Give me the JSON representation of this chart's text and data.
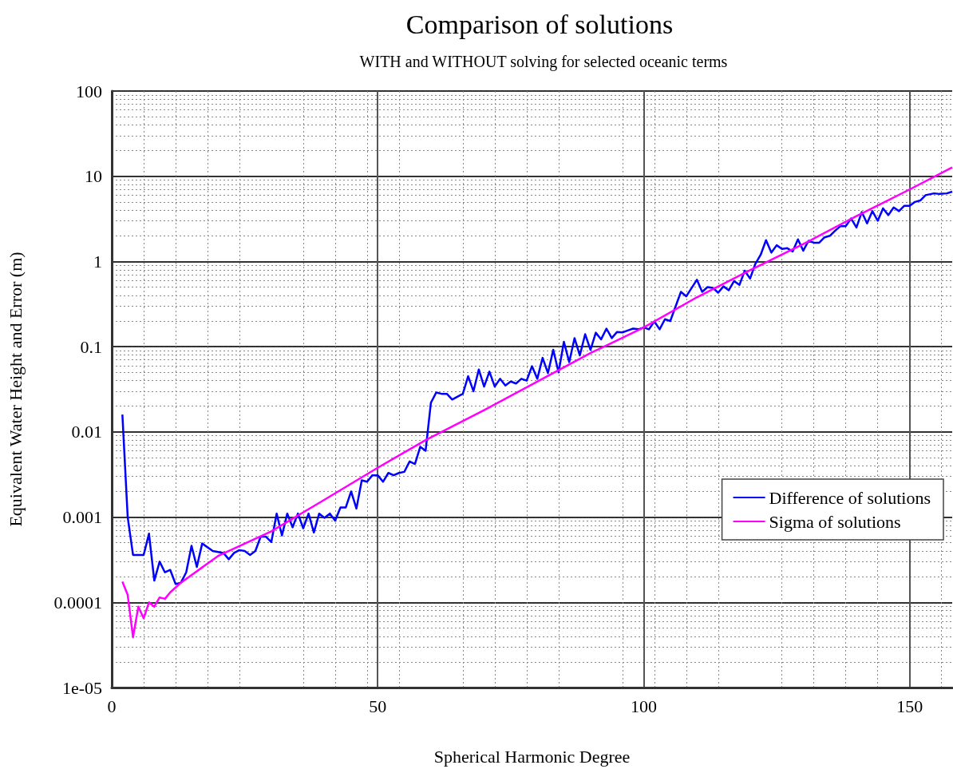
{
  "chart_data": {
    "type": "line",
    "title": "Comparison of solutions",
    "subtitle": "WITH and WITHOUT solving for selected oceanic terms",
    "xlabel": "Spherical Harmonic Degree",
    "ylabel": "Equivalent Water Height and Error (m)",
    "log": "y",
    "xlim": [
      0,
      158
    ],
    "xticks": [
      0,
      50,
      100,
      150
    ],
    "ylim": [
      1e-05,
      100
    ],
    "yticks": [
      {
        "value": 1e-05,
        "label": "1e-05"
      },
      0.0001,
      0.001,
      0.01,
      0.1,
      1,
      10,
      100
    ],
    "grid": true,
    "legend": "right",
    "marker": "none",
    "line_style": "solid",
    "series": [
      {
        "name": "Difference of solutions",
        "color": "#0000ff",
        "x": [
          2,
          3,
          4,
          6,
          7,
          8,
          9,
          10,
          11,
          12,
          13,
          14,
          15,
          16,
          17,
          19,
          21,
          22,
          23,
          24,
          25,
          26,
          27,
          28,
          29,
          30,
          31,
          32,
          33,
          34,
          35,
          36,
          37,
          38,
          39,
          40,
          41,
          42,
          43,
          44,
          45,
          46,
          47,
          48,
          49,
          50,
          51,
          52,
          53,
          54,
          55,
          56,
          57,
          58,
          59,
          60,
          61,
          62,
          63,
          64,
          66,
          67,
          68,
          69,
          70,
          71,
          72,
          73,
          74,
          75,
          76,
          77,
          78,
          79,
          80,
          81,
          82,
          83,
          84,
          85,
          86,
          87,
          88,
          89,
          90,
          91,
          92,
          93,
          94,
          95,
          96,
          97,
          98,
          99,
          100,
          101,
          102,
          103,
          104,
          105,
          107,
          108,
          110,
          111,
          112,
          113,
          114,
          115,
          116,
          117,
          118,
          119,
          120,
          121,
          122,
          123,
          124,
          125,
          126,
          127,
          128,
          129,
          130,
          131,
          132,
          133,
          134,
          135,
          136,
          137,
          138,
          139,
          140,
          141,
          142,
          143,
          144,
          145,
          146,
          147,
          148,
          149,
          150,
          151,
          152,
          153,
          154.6,
          155.6,
          157,
          158
        ],
        "values": [
          0.016,
          0.001,
          0.00036,
          0.00036,
          0.00064,
          0.00018,
          0.0003,
          0.000225,
          0.00024,
          0.000164,
          0.00017,
          0.000225,
          0.00046,
          0.00026,
          0.00049,
          0.0004,
          0.00038,
          0.00032,
          0.00038,
          0.00041,
          0.0004,
          0.00036,
          0.0004,
          0.00059,
          0.00059,
          0.00051,
          0.0011,
          0.00061,
          0.0011,
          0.00076,
          0.0011,
          0.00074,
          0.0011,
          0.00066,
          0.0011,
          0.00098,
          0.0011,
          0.00091,
          0.0013,
          0.0013,
          0.002,
          0.00126,
          0.0027,
          0.0026,
          0.0031,
          0.0031,
          0.0026,
          0.0033,
          0.0031,
          0.0033,
          0.0034,
          0.0045,
          0.0042,
          0.0067,
          0.006,
          0.022,
          0.029,
          0.028,
          0.028,
          0.024,
          0.028,
          0.045,
          0.03,
          0.054,
          0.034,
          0.051,
          0.034,
          0.042,
          0.035,
          0.039,
          0.037,
          0.042,
          0.04,
          0.059,
          0.042,
          0.074,
          0.049,
          0.092,
          0.05,
          0.114,
          0.066,
          0.126,
          0.079,
          0.14,
          0.092,
          0.146,
          0.122,
          0.163,
          0.126,
          0.149,
          0.147,
          0.155,
          0.163,
          0.16,
          0.168,
          0.16,
          0.198,
          0.16,
          0.21,
          0.2,
          0.44,
          0.39,
          0.61,
          0.44,
          0.5,
          0.49,
          0.43,
          0.51,
          0.46,
          0.59,
          0.53,
          0.78,
          0.63,
          0.94,
          1.2,
          1.78,
          1.27,
          1.55,
          1.4,
          1.43,
          1.31,
          1.82,
          1.34,
          1.75,
          1.66,
          1.66,
          1.92,
          2,
          2.3,
          2.6,
          2.6,
          3.2,
          2.5,
          3.8,
          2.8,
          3.9,
          3,
          4.2,
          3.5,
          4.3,
          3.9,
          4.5,
          4.5,
          5,
          5.2,
          6,
          6.3,
          6.2,
          6.3,
          6.6
        ]
      },
      {
        "name": "Sigma of solutions",
        "color": "#ff00ff",
        "x": [
          2,
          3,
          4,
          5,
          6,
          7,
          8,
          9,
          10,
          11,
          13,
          20,
          30,
          40,
          50,
          59,
          70,
          80,
          90,
          100,
          110,
          120,
          130,
          140,
          150,
          158
        ],
        "values": [
          0.000175,
          0.000122,
          3.9e-05,
          8.9e-05,
          6.5e-05,
          0.0001,
          8.9e-05,
          0.000114,
          0.00011,
          0.000131,
          0.00017,
          0.00035,
          0.00068,
          0.0016,
          0.0038,
          0.008,
          0.018,
          0.039,
          0.084,
          0.168,
          0.38,
          0.79,
          1.6,
          3.4,
          7,
          12.7
        ]
      }
    ]
  }
}
